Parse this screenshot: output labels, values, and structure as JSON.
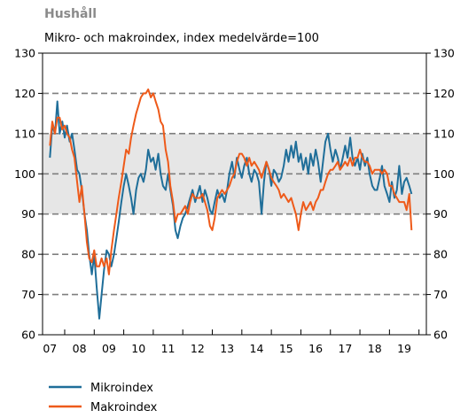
{
  "chart_data": {
    "type": "line",
    "title": "Hushåll",
    "subtitle": "Mikro- och makroindex, index medelvärde=100",
    "y_ticks": [
      "130",
      "120",
      "110",
      "100",
      "90",
      "80",
      "70",
      "60"
    ],
    "ylim": [
      60,
      130
    ],
    "x_tick_labels": [
      "07",
      "08",
      "09",
      "10",
      "11",
      "12",
      "13",
      "14",
      "15",
      "16",
      "17",
      "18",
      "19"
    ],
    "xlim": [
      2006.75,
      2019.75
    ],
    "shaded_band": [
      90,
      110
    ],
    "dashed_gridlines": [
      70,
      80,
      90,
      100,
      110,
      120
    ],
    "colors": {
      "Mikroindex": "#1f6e99",
      "Makroindex": "#ee5a1a",
      "band": "#e6e6e6",
      "grid": "#7f7f7f"
    },
    "legend_position": "bottom-left",
    "series": [
      {
        "name": "Mikroindex",
        "color": "#1f6e99",
        "points": [
          [
            2007.0,
            104
          ],
          [
            2007.08,
            112
          ],
          [
            2007.17,
            110
          ],
          [
            2007.25,
            118
          ],
          [
            2007.33,
            110
          ],
          [
            2007.42,
            113
          ],
          [
            2007.5,
            109
          ],
          [
            2007.58,
            112
          ],
          [
            2007.67,
            108
          ],
          [
            2007.75,
            110
          ],
          [
            2007.83,
            106
          ],
          [
            2007.92,
            101
          ],
          [
            2008.0,
            100
          ],
          [
            2008.08,
            96
          ],
          [
            2008.17,
            90
          ],
          [
            2008.25,
            86
          ],
          [
            2008.33,
            80
          ],
          [
            2008.42,
            75
          ],
          [
            2008.5,
            80
          ],
          [
            2008.58,
            72
          ],
          [
            2008.67,
            64
          ],
          [
            2008.75,
            70
          ],
          [
            2008.83,
            76
          ],
          [
            2008.92,
            81
          ],
          [
            2009.0,
            80
          ],
          [
            2009.08,
            77
          ],
          [
            2009.17,
            80
          ],
          [
            2009.25,
            84
          ],
          [
            2009.33,
            88
          ],
          [
            2009.42,
            93
          ],
          [
            2009.5,
            97
          ],
          [
            2009.58,
            100
          ],
          [
            2009.67,
            97
          ],
          [
            2009.75,
            94
          ],
          [
            2009.83,
            90
          ],
          [
            2009.92,
            96
          ],
          [
            2010.0,
            99
          ],
          [
            2010.08,
            100
          ],
          [
            2010.17,
            98
          ],
          [
            2010.25,
            101
          ],
          [
            2010.33,
            106
          ],
          [
            2010.42,
            103
          ],
          [
            2010.5,
            104
          ],
          [
            2010.58,
            101
          ],
          [
            2010.67,
            105
          ],
          [
            2010.75,
            100
          ],
          [
            2010.83,
            97
          ],
          [
            2010.92,
            96
          ],
          [
            2011.0,
            100
          ],
          [
            2011.08,
            96
          ],
          [
            2011.17,
            92
          ],
          [
            2011.25,
            86
          ],
          [
            2011.33,
            84
          ],
          [
            2011.42,
            87
          ],
          [
            2011.5,
            89
          ],
          [
            2011.58,
            90
          ],
          [
            2011.67,
            92
          ],
          [
            2011.75,
            94
          ],
          [
            2011.83,
            96
          ],
          [
            2011.92,
            93
          ],
          [
            2012.0,
            95
          ],
          [
            2012.08,
            97
          ],
          [
            2012.17,
            93
          ],
          [
            2012.25,
            96
          ],
          [
            2012.33,
            94
          ],
          [
            2012.42,
            91
          ],
          [
            2012.5,
            90
          ],
          [
            2012.58,
            93
          ],
          [
            2012.67,
            96
          ],
          [
            2012.75,
            94
          ],
          [
            2012.83,
            95
          ],
          [
            2012.92,
            93
          ],
          [
            2013.0,
            96
          ],
          [
            2013.08,
            100
          ],
          [
            2013.17,
            103
          ],
          [
            2013.25,
            99
          ],
          [
            2013.33,
            104
          ],
          [
            2013.42,
            101
          ],
          [
            2013.5,
            99
          ],
          [
            2013.58,
            102
          ],
          [
            2013.67,
            104
          ],
          [
            2013.75,
            100
          ],
          [
            2013.83,
            98
          ],
          [
            2013.92,
            101
          ],
          [
            2014.0,
            100
          ],
          [
            2014.08,
            98
          ],
          [
            2014.17,
            90
          ],
          [
            2014.25,
            98
          ],
          [
            2014.33,
            103
          ],
          [
            2014.42,
            101
          ],
          [
            2014.5,
            97
          ],
          [
            2014.58,
            101
          ],
          [
            2014.67,
            100
          ],
          [
            2014.75,
            98
          ],
          [
            2014.83,
            99
          ],
          [
            2014.92,
            102
          ],
          [
            2015.0,
            106
          ],
          [
            2015.08,
            103
          ],
          [
            2015.17,
            107
          ],
          [
            2015.25,
            104
          ],
          [
            2015.33,
            108
          ],
          [
            2015.42,
            103
          ],
          [
            2015.5,
            105
          ],
          [
            2015.58,
            101
          ],
          [
            2015.67,
            104
          ],
          [
            2015.75,
            100
          ],
          [
            2015.83,
            105
          ],
          [
            2015.92,
            102
          ],
          [
            2016.0,
            106
          ],
          [
            2016.08,
            103
          ],
          [
            2016.17,
            98
          ],
          [
            2016.25,
            103
          ],
          [
            2016.33,
            108
          ],
          [
            2016.42,
            110
          ],
          [
            2016.5,
            106
          ],
          [
            2016.58,
            103
          ],
          [
            2016.67,
            106
          ],
          [
            2016.75,
            104
          ],
          [
            2016.83,
            101
          ],
          [
            2016.92,
            104
          ],
          [
            2017.0,
            107
          ],
          [
            2017.08,
            104
          ],
          [
            2017.17,
            109
          ],
          [
            2017.25,
            104
          ],
          [
            2017.33,
            102
          ],
          [
            2017.42,
            104
          ],
          [
            2017.5,
            101
          ],
          [
            2017.58,
            105
          ],
          [
            2017.67,
            102
          ],
          [
            2017.75,
            104
          ],
          [
            2017.83,
            100
          ],
          [
            2017.92,
            97
          ],
          [
            2018.0,
            96
          ],
          [
            2018.08,
            96
          ],
          [
            2018.17,
            99
          ],
          [
            2018.25,
            102
          ],
          [
            2018.33,
            97
          ],
          [
            2018.42,
            95
          ],
          [
            2018.5,
            93
          ],
          [
            2018.58,
            98
          ],
          [
            2018.67,
            94
          ],
          [
            2018.75,
            96
          ],
          [
            2018.83,
            102
          ],
          [
            2018.92,
            95
          ],
          [
            2019.0,
            98
          ],
          [
            2019.08,
            99
          ],
          [
            2019.17,
            97
          ],
          [
            2019.25,
            95
          ]
        ]
      },
      {
        "name": "Makroindex",
        "color": "#ee5a1a",
        "points": [
          [
            2007.0,
            107
          ],
          [
            2007.08,
            113
          ],
          [
            2007.17,
            110
          ],
          [
            2007.25,
            114
          ],
          [
            2007.33,
            114
          ],
          [
            2007.42,
            111
          ],
          [
            2007.5,
            112
          ],
          [
            2007.58,
            110
          ],
          [
            2007.67,
            109
          ],
          [
            2007.75,
            106
          ],
          [
            2007.83,
            104
          ],
          [
            2007.92,
            98
          ],
          [
            2008.0,
            93
          ],
          [
            2008.08,
            97
          ],
          [
            2008.17,
            90
          ],
          [
            2008.25,
            83
          ],
          [
            2008.33,
            79
          ],
          [
            2008.42,
            78
          ],
          [
            2008.5,
            81
          ],
          [
            2008.58,
            77
          ],
          [
            2008.67,
            77
          ],
          [
            2008.75,
            79
          ],
          [
            2008.83,
            77
          ],
          [
            2008.92,
            79
          ],
          [
            2009.0,
            75
          ],
          [
            2009.08,
            81
          ],
          [
            2009.17,
            86
          ],
          [
            2009.25,
            90
          ],
          [
            2009.33,
            94
          ],
          [
            2009.42,
            98
          ],
          [
            2009.5,
            102
          ],
          [
            2009.58,
            106
          ],
          [
            2009.67,
            105
          ],
          [
            2009.75,
            109
          ],
          [
            2009.83,
            112
          ],
          [
            2009.92,
            115
          ],
          [
            2010.0,
            117
          ],
          [
            2010.08,
            119
          ],
          [
            2010.17,
            120
          ],
          [
            2010.25,
            120
          ],
          [
            2010.33,
            121
          ],
          [
            2010.42,
            119
          ],
          [
            2010.5,
            120
          ],
          [
            2010.58,
            118
          ],
          [
            2010.67,
            116
          ],
          [
            2010.75,
            113
          ],
          [
            2010.83,
            112
          ],
          [
            2010.92,
            106
          ],
          [
            2011.0,
            103
          ],
          [
            2011.08,
            97
          ],
          [
            2011.17,
            93
          ],
          [
            2011.25,
            88
          ],
          [
            2011.33,
            90
          ],
          [
            2011.42,
            90
          ],
          [
            2011.5,
            91
          ],
          [
            2011.58,
            92
          ],
          [
            2011.67,
            90
          ],
          [
            2011.75,
            93
          ],
          [
            2011.83,
            95
          ],
          [
            2011.92,
            94
          ],
          [
            2012.0,
            94
          ],
          [
            2012.08,
            94
          ],
          [
            2012.17,
            95
          ],
          [
            2012.25,
            93
          ],
          [
            2012.33,
            91
          ],
          [
            2012.42,
            87
          ],
          [
            2012.5,
            86
          ],
          [
            2012.58,
            89
          ],
          [
            2012.67,
            94
          ],
          [
            2012.75,
            95
          ],
          [
            2012.83,
            96
          ],
          [
            2012.92,
            95
          ],
          [
            2013.0,
            96
          ],
          [
            2013.08,
            97
          ],
          [
            2013.17,
            99
          ],
          [
            2013.25,
            100
          ],
          [
            2013.33,
            103
          ],
          [
            2013.42,
            105
          ],
          [
            2013.5,
            105
          ],
          [
            2013.58,
            104
          ],
          [
            2013.67,
            102
          ],
          [
            2013.75,
            104
          ],
          [
            2013.83,
            102
          ],
          [
            2013.92,
            103
          ],
          [
            2014.0,
            102
          ],
          [
            2014.08,
            101
          ],
          [
            2014.17,
            99
          ],
          [
            2014.25,
            101
          ],
          [
            2014.33,
            103
          ],
          [
            2014.42,
            101
          ],
          [
            2014.5,
            99
          ],
          [
            2014.58,
            98
          ],
          [
            2014.67,
            97
          ],
          [
            2014.75,
            96
          ],
          [
            2014.83,
            94
          ],
          [
            2014.92,
            95
          ],
          [
            2015.0,
            94
          ],
          [
            2015.08,
            93
          ],
          [
            2015.17,
            94
          ],
          [
            2015.25,
            92
          ],
          [
            2015.33,
            90
          ],
          [
            2015.42,
            86
          ],
          [
            2015.5,
            90
          ],
          [
            2015.58,
            93
          ],
          [
            2015.67,
            91
          ],
          [
            2015.75,
            92
          ],
          [
            2015.83,
            93
          ],
          [
            2015.92,
            91
          ],
          [
            2016.0,
            93
          ],
          [
            2016.08,
            94
          ],
          [
            2016.17,
            96
          ],
          [
            2016.25,
            96
          ],
          [
            2016.33,
            98
          ],
          [
            2016.42,
            100
          ],
          [
            2016.5,
            101
          ],
          [
            2016.58,
            101
          ],
          [
            2016.67,
            102
          ],
          [
            2016.75,
            103
          ],
          [
            2016.83,
            101
          ],
          [
            2016.92,
            102
          ],
          [
            2017.0,
            103
          ],
          [
            2017.08,
            102
          ],
          [
            2017.17,
            104
          ],
          [
            2017.25,
            102
          ],
          [
            2017.33,
            104
          ],
          [
            2017.42,
            104
          ],
          [
            2017.5,
            106
          ],
          [
            2017.58,
            104
          ],
          [
            2017.67,
            103
          ],
          [
            2017.75,
            103
          ],
          [
            2017.83,
            102
          ],
          [
            2017.92,
            100
          ],
          [
            2018.0,
            101
          ],
          [
            2018.08,
            101
          ],
          [
            2018.17,
            101
          ],
          [
            2018.25,
            100
          ],
          [
            2018.33,
            101
          ],
          [
            2018.42,
            100
          ],
          [
            2018.5,
            97
          ],
          [
            2018.58,
            97
          ],
          [
            2018.67,
            95
          ],
          [
            2018.75,
            94
          ],
          [
            2018.83,
            93
          ],
          [
            2018.92,
            93
          ],
          [
            2019.0,
            93
          ],
          [
            2019.08,
            91
          ],
          [
            2019.17,
            95
          ],
          [
            2019.25,
            86
          ]
        ]
      }
    ]
  }
}
